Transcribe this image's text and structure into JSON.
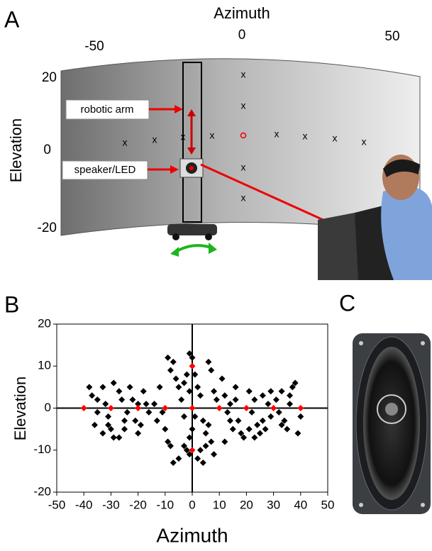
{
  "panel_a": {
    "label": "A",
    "x_axis_label": "Azimuth",
    "y_axis_label": "Elevation",
    "xticks": [
      -50,
      0,
      50
    ],
    "yticks": [
      20,
      0,
      -20
    ],
    "callouts": [
      "robotic arm",
      "speaker/LED"
    ]
  },
  "chart_data": {
    "type": "scatter",
    "label": "B",
    "x_label": "Azimuth",
    "y_label": "Elevation",
    "xlim": [
      -50,
      50
    ],
    "xticks": [
      -50,
      -40,
      -30,
      -20,
      -10,
      0,
      10,
      20,
      30,
      40,
      50
    ],
    "ylim": [
      -20,
      20
    ],
    "yticks": [
      -20,
      -10,
      0,
      10,
      20
    ],
    "series": [
      {
        "color": "#000000",
        "x": [
          -38,
          -37,
          -36,
          -35,
          -33,
          -32,
          -31,
          -30,
          -29,
          -27,
          -33,
          -35,
          -29,
          -31,
          -27,
          -26,
          -25,
          -24,
          -22,
          -23,
          -21,
          -20,
          -19,
          -18,
          -17,
          -16,
          -20,
          -25,
          -14,
          -13,
          -12,
          -11,
          -10,
          -9,
          -8,
          -7,
          -9,
          -8,
          -7,
          -6,
          -5,
          -4,
          -3,
          -3,
          -2,
          -1,
          -5,
          -1,
          0,
          1,
          2,
          3,
          4,
          5,
          2,
          3,
          -2,
          -3,
          -1,
          0,
          1,
          -1,
          6,
          7,
          8,
          9,
          6,
          7,
          5,
          8,
          4,
          11,
          12,
          13,
          14,
          15,
          12,
          16,
          17,
          18,
          19,
          16,
          14,
          21,
          22,
          23,
          24,
          25,
          26,
          27,
          23,
          28,
          29,
          26,
          21,
          31,
          32,
          33,
          34,
          35,
          36,
          37,
          38,
          39,
          40,
          33,
          36,
          29
        ],
        "values": [
          5,
          3,
          -4,
          -1,
          5,
          1,
          -2,
          -5,
          -7,
          -7,
          -6,
          2,
          6,
          -4,
          4,
          2,
          -3,
          -1,
          2,
          5,
          -3,
          -6,
          -4,
          4,
          1,
          -1,
          1,
          -5,
          1,
          -3,
          5,
          -1,
          -5,
          -8,
          -9,
          -13,
          12,
          9,
          11,
          7,
          5,
          2,
          -2,
          -9,
          -10,
          -11,
          -12,
          13,
          12,
          8,
          5,
          3,
          -3,
          -6,
          -12,
          -10,
          8,
          6,
          4,
          -5,
          -2,
          -7,
          11,
          9,
          4,
          2,
          -4,
          -8,
          -9,
          -11,
          -13,
          7,
          3,
          -1,
          -3,
          -5,
          -8,
          2,
          -3,
          -6,
          -7,
          5,
          1,
          4,
          -1,
          2,
          -4,
          -6,
          -3,
          -5,
          -7,
          1,
          -2,
          3,
          -5,
          2,
          -1,
          4,
          -3,
          -5,
          1,
          5,
          6,
          -6,
          -2,
          -4,
          3,
          4
        ]
      },
      {
        "color": "#ff0000",
        "x": [
          -40,
          -30,
          -20,
          -10,
          0,
          10,
          20,
          30,
          40,
          0,
          0
        ],
        "values": [
          0,
          0,
          0,
          0,
          0,
          0,
          0,
          0,
          0,
          10,
          -10
        ]
      }
    ]
  },
  "panel_c": {
    "label": "C"
  }
}
